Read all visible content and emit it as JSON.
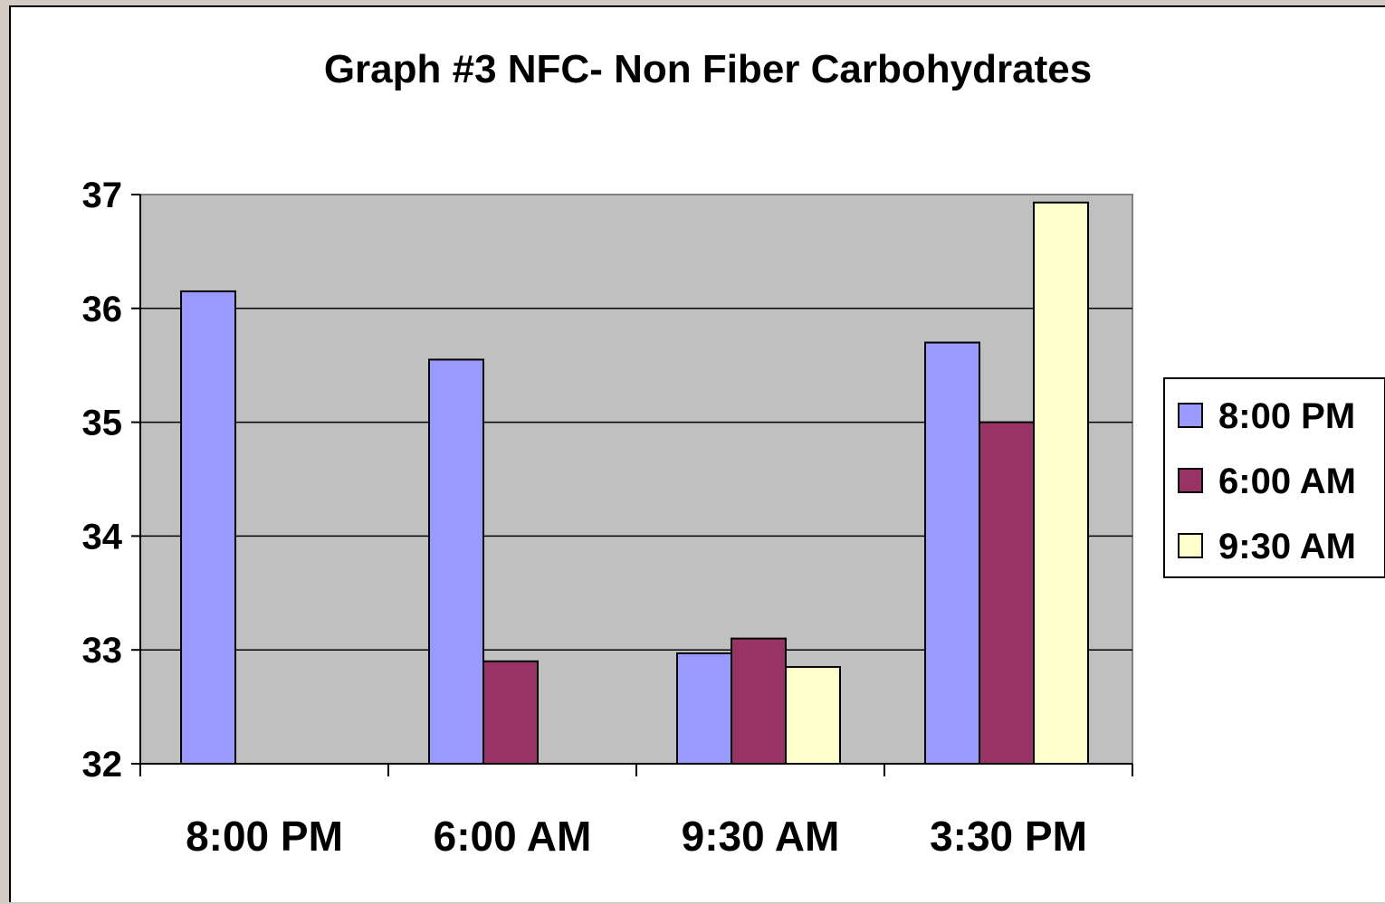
{
  "chart_data": {
    "type": "bar",
    "title": "Graph #3 NFC- Non Fiber Carbohydrates",
    "xlabel": "",
    "ylabel": "",
    "categories": [
      "8:00 PM",
      "6:00 AM",
      "9:30 AM",
      "3:30 PM"
    ],
    "series": [
      {
        "name": "8:00 PM",
        "color": "#9999ff",
        "values": [
          36.15,
          35.55,
          32.97,
          35.7
        ]
      },
      {
        "name": "6:00 AM",
        "color": "#993366",
        "values": [
          null,
          32.9,
          33.1,
          35.0
        ]
      },
      {
        "name": "9:30 AM",
        "color": "#ffffcc",
        "values": [
          null,
          null,
          32.85,
          36.93
        ]
      }
    ],
    "ylim": [
      32,
      37
    ],
    "yticks": [
      "32",
      "33",
      "34",
      "35",
      "36",
      "37"
    ],
    "grid": true,
    "plot_background": "#c0c0c0",
    "legend": "right"
  }
}
